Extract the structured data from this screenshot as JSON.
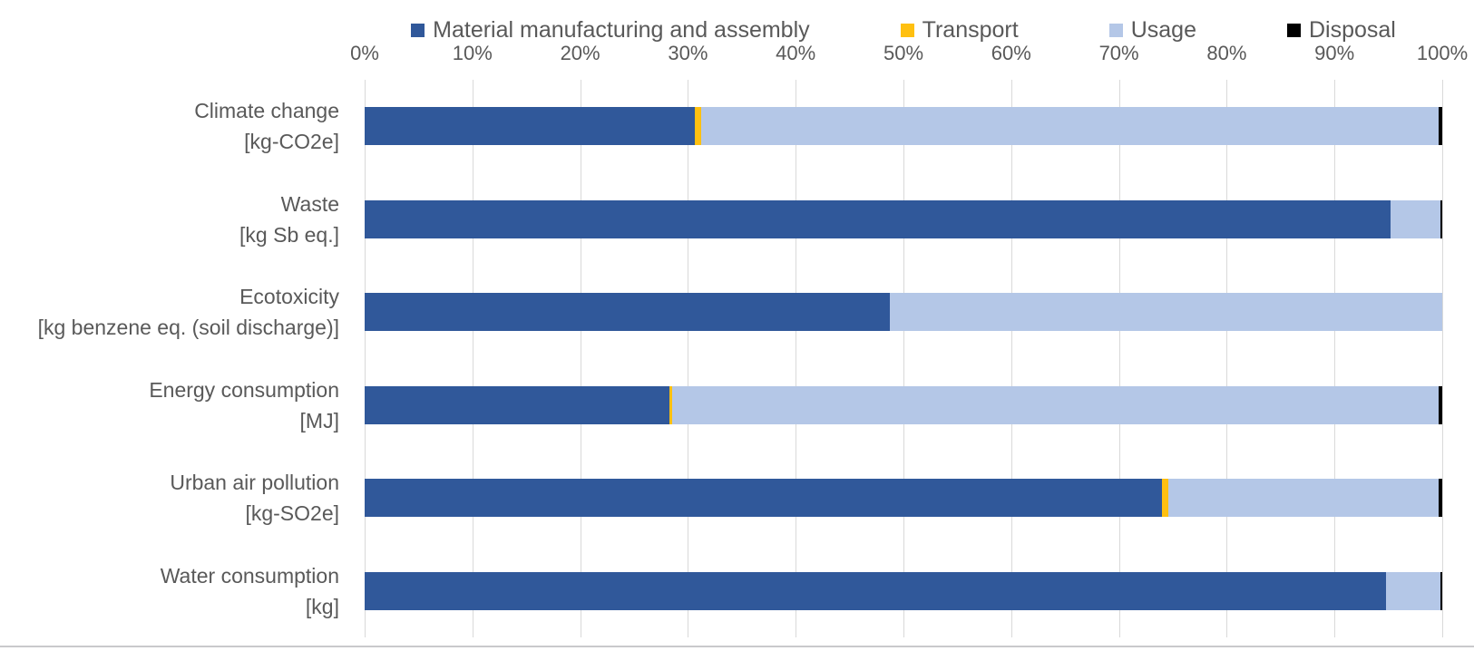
{
  "chart_data": {
    "type": "bar",
    "orientation": "horizontal",
    "stacking": "100%-stacked",
    "title": "",
    "legend_position": "top",
    "grid": "vertical-only",
    "categories": [
      {
        "line1": "Climate change",
        "line2": "[kg-CO2e]"
      },
      {
        "line1": "Waste",
        "line2": "[kg Sb eq.]"
      },
      {
        "line1": "Ecotoxicity",
        "line2": "[kg benzene eq. (soil discharge)]"
      },
      {
        "line1": "Energy consumption",
        "line2": "[MJ]"
      },
      {
        "line1": "Urban air pollution",
        "line2": "[kg-SO2e]"
      },
      {
        "line1": "Water consumption",
        "line2": "[kg]"
      }
    ],
    "series": [
      {
        "name": "Material manufacturing and assembly",
        "color": "#30589A",
        "values": [
          30.6,
          95.2,
          48.7,
          28.3,
          74.0,
          94.8
        ]
      },
      {
        "name": "Transport",
        "color": "#FFC010",
        "values": [
          0.6,
          0.0,
          0.0,
          0.2,
          0.6,
          0.0
        ]
      },
      {
        "name": "Usage",
        "color": "#B4C7E7",
        "values": [
          68.5,
          4.6,
          51.3,
          71.2,
          25.1,
          5.0
        ]
      },
      {
        "name": "Disposal",
        "color": "#000000",
        "values": [
          0.3,
          0.2,
          0.0,
          0.3,
          0.3,
          0.2
        ]
      }
    ],
    "x_axis": {
      "min": 0,
      "max": 100,
      "tick_step": 10,
      "tick_labels": [
        "0%",
        "10%",
        "20%",
        "30%",
        "40%",
        "50%",
        "60%",
        "70%",
        "80%",
        "90%",
        "100%"
      ]
    }
  },
  "colors": {
    "background": "#FFFFFF",
    "text": "#595959",
    "gridline": "#D9D9D9",
    "bottom_border": "#C9C9CC"
  }
}
